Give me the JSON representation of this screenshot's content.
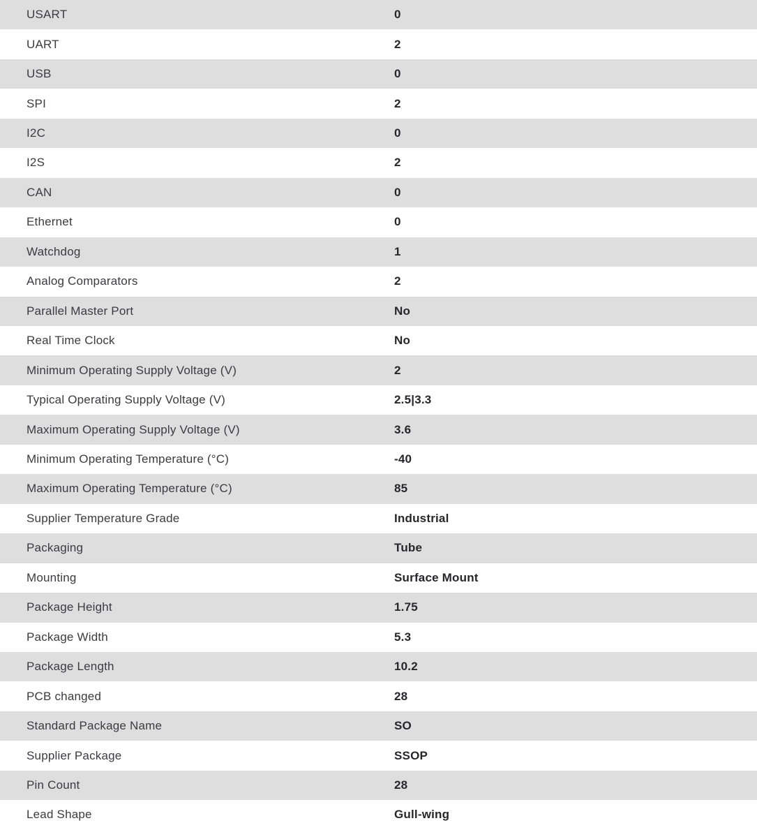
{
  "table": {
    "stripe_color": "#dedede",
    "row_background": "#ffffff",
    "label_color": "#3b3b40",
    "value_color": "#26262b",
    "rows": [
      {
        "label": "USART",
        "value": "0"
      },
      {
        "label": "UART",
        "value": "2"
      },
      {
        "label": "USB",
        "value": "0"
      },
      {
        "label": "SPI",
        "value": "2"
      },
      {
        "label": "I2C",
        "value": "0"
      },
      {
        "label": "I2S",
        "value": "2"
      },
      {
        "label": "CAN",
        "value": "0"
      },
      {
        "label": "Ethernet",
        "value": "0"
      },
      {
        "label": "Watchdog",
        "value": "1"
      },
      {
        "label": "Analog Comparators",
        "value": "2"
      },
      {
        "label": "Parallel Master Port",
        "value": "No"
      },
      {
        "label": "Real Time Clock",
        "value": "No"
      },
      {
        "label": "Minimum Operating Supply Voltage (V)",
        "value": "2"
      },
      {
        "label": "Typical Operating Supply Voltage (V)",
        "value": "2.5|3.3"
      },
      {
        "label": "Maximum Operating Supply Voltage (V)",
        "value": "3.6"
      },
      {
        "label": "Minimum Operating Temperature (°C)",
        "value": "-40"
      },
      {
        "label": "Maximum Operating Temperature (°C)",
        "value": "85"
      },
      {
        "label": "Supplier Temperature Grade",
        "value": "Industrial"
      },
      {
        "label": "Packaging",
        "value": "Tube"
      },
      {
        "label": "Mounting",
        "value": "Surface Mount"
      },
      {
        "label": "Package Height",
        "value": "1.75"
      },
      {
        "label": "Package Width",
        "value": "5.3"
      },
      {
        "label": "Package Length",
        "value": "10.2"
      },
      {
        "label": "PCB changed",
        "value": "28"
      },
      {
        "label": "Standard Package Name",
        "value": "SO"
      },
      {
        "label": "Supplier Package",
        "value": "SSOP"
      },
      {
        "label": "Pin Count",
        "value": "28"
      },
      {
        "label": "Lead Shape",
        "value": "Gull-wing"
      }
    ]
  }
}
